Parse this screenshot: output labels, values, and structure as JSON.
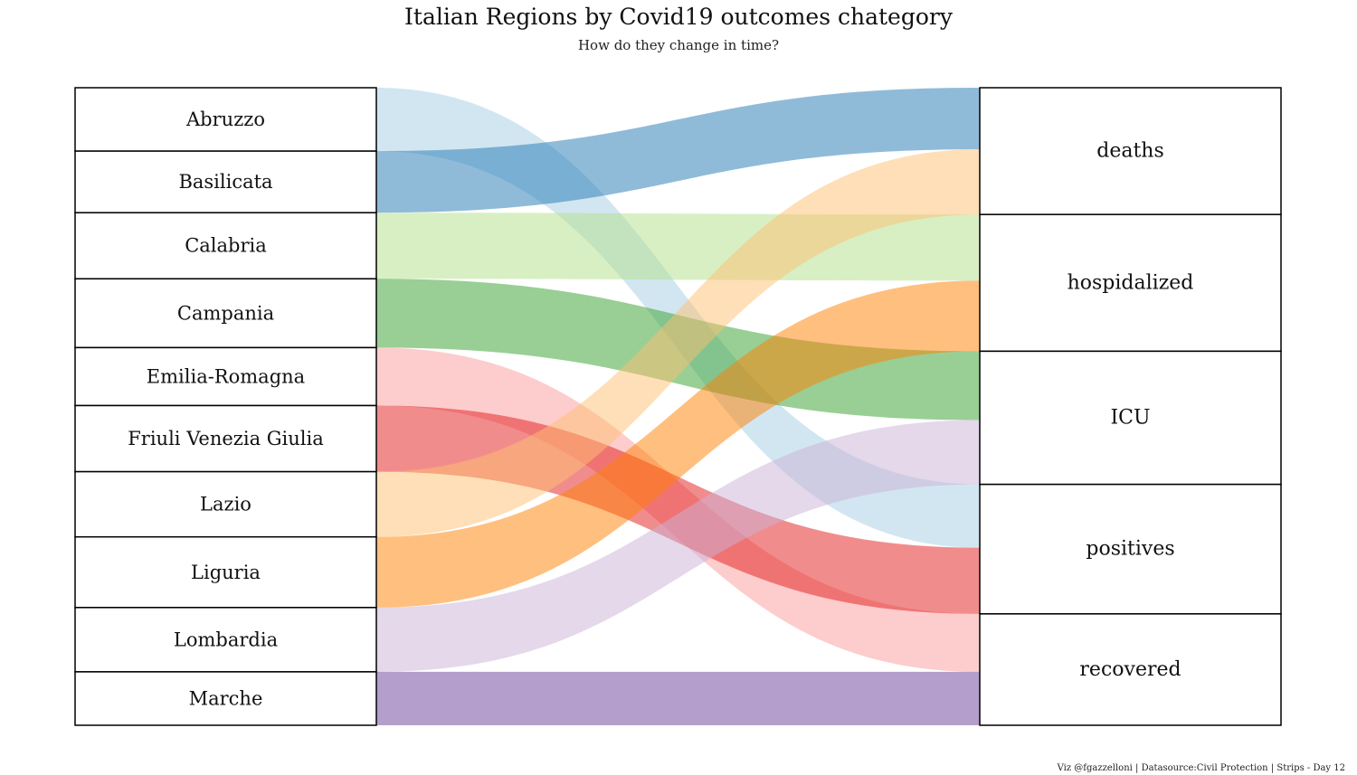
{
  "chart_data": {
    "type": "sankey",
    "title": "Italian Regions by Covid19 outcomes chategory",
    "subtitle": "How do they change in time?",
    "caption": "Viz @fgazzelloni | Datasource:Civil Protection  | Strips - Day 12",
    "left_nodes": [
      "Abruzzo",
      "Basilicata",
      "Calabria",
      "Campania",
      "Emilia-Romagna",
      "Friuli Venezia Giulia",
      "Lazio",
      "Liguria",
      "Lombardia",
      "Marche"
    ],
    "right_nodes": [
      "deaths",
      "hospidalized",
      "ICU",
      "positives",
      "recovered"
    ],
    "flows": [
      {
        "source": "Abruzzo",
        "target": "positives",
        "value": 70,
        "color": "#a6cee3",
        "opacity": 0.5
      },
      {
        "source": "Basilicata",
        "target": "deaths",
        "value": 68,
        "color": "#1f78b4",
        "opacity": 0.5
      },
      {
        "source": "Calabria",
        "target": "hospidalized",
        "value": 73,
        "color": "#b2df8a",
        "opacity": 0.5
      },
      {
        "source": "Campania",
        "target": "ICU",
        "value": 76,
        "color": "#33a02c",
        "opacity": 0.5
      },
      {
        "source": "Emilia-Romagna",
        "target": "recovered",
        "value": 64,
        "color": "#fb9a99",
        "opacity": 0.5
      },
      {
        "source": "Friuli Venezia Giulia",
        "target": "positives",
        "value": 73,
        "color": "#e31a1c",
        "opacity": 0.5
      },
      {
        "source": "Lazio",
        "target": "deaths",
        "value": 72,
        "color": "#fdbf6f",
        "opacity": 0.5
      },
      {
        "source": "Liguria",
        "target": "hospidalized",
        "value": 78,
        "color": "#ff7f00",
        "opacity": 0.5
      },
      {
        "source": "Lombardia",
        "target": "ICU",
        "value": 71,
        "color": "#cab2d6",
        "opacity": 0.5
      },
      {
        "source": "Marche",
        "target": "recovered",
        "value": 59,
        "color": "#6a3d9a",
        "opacity": 0.5
      }
    ]
  }
}
